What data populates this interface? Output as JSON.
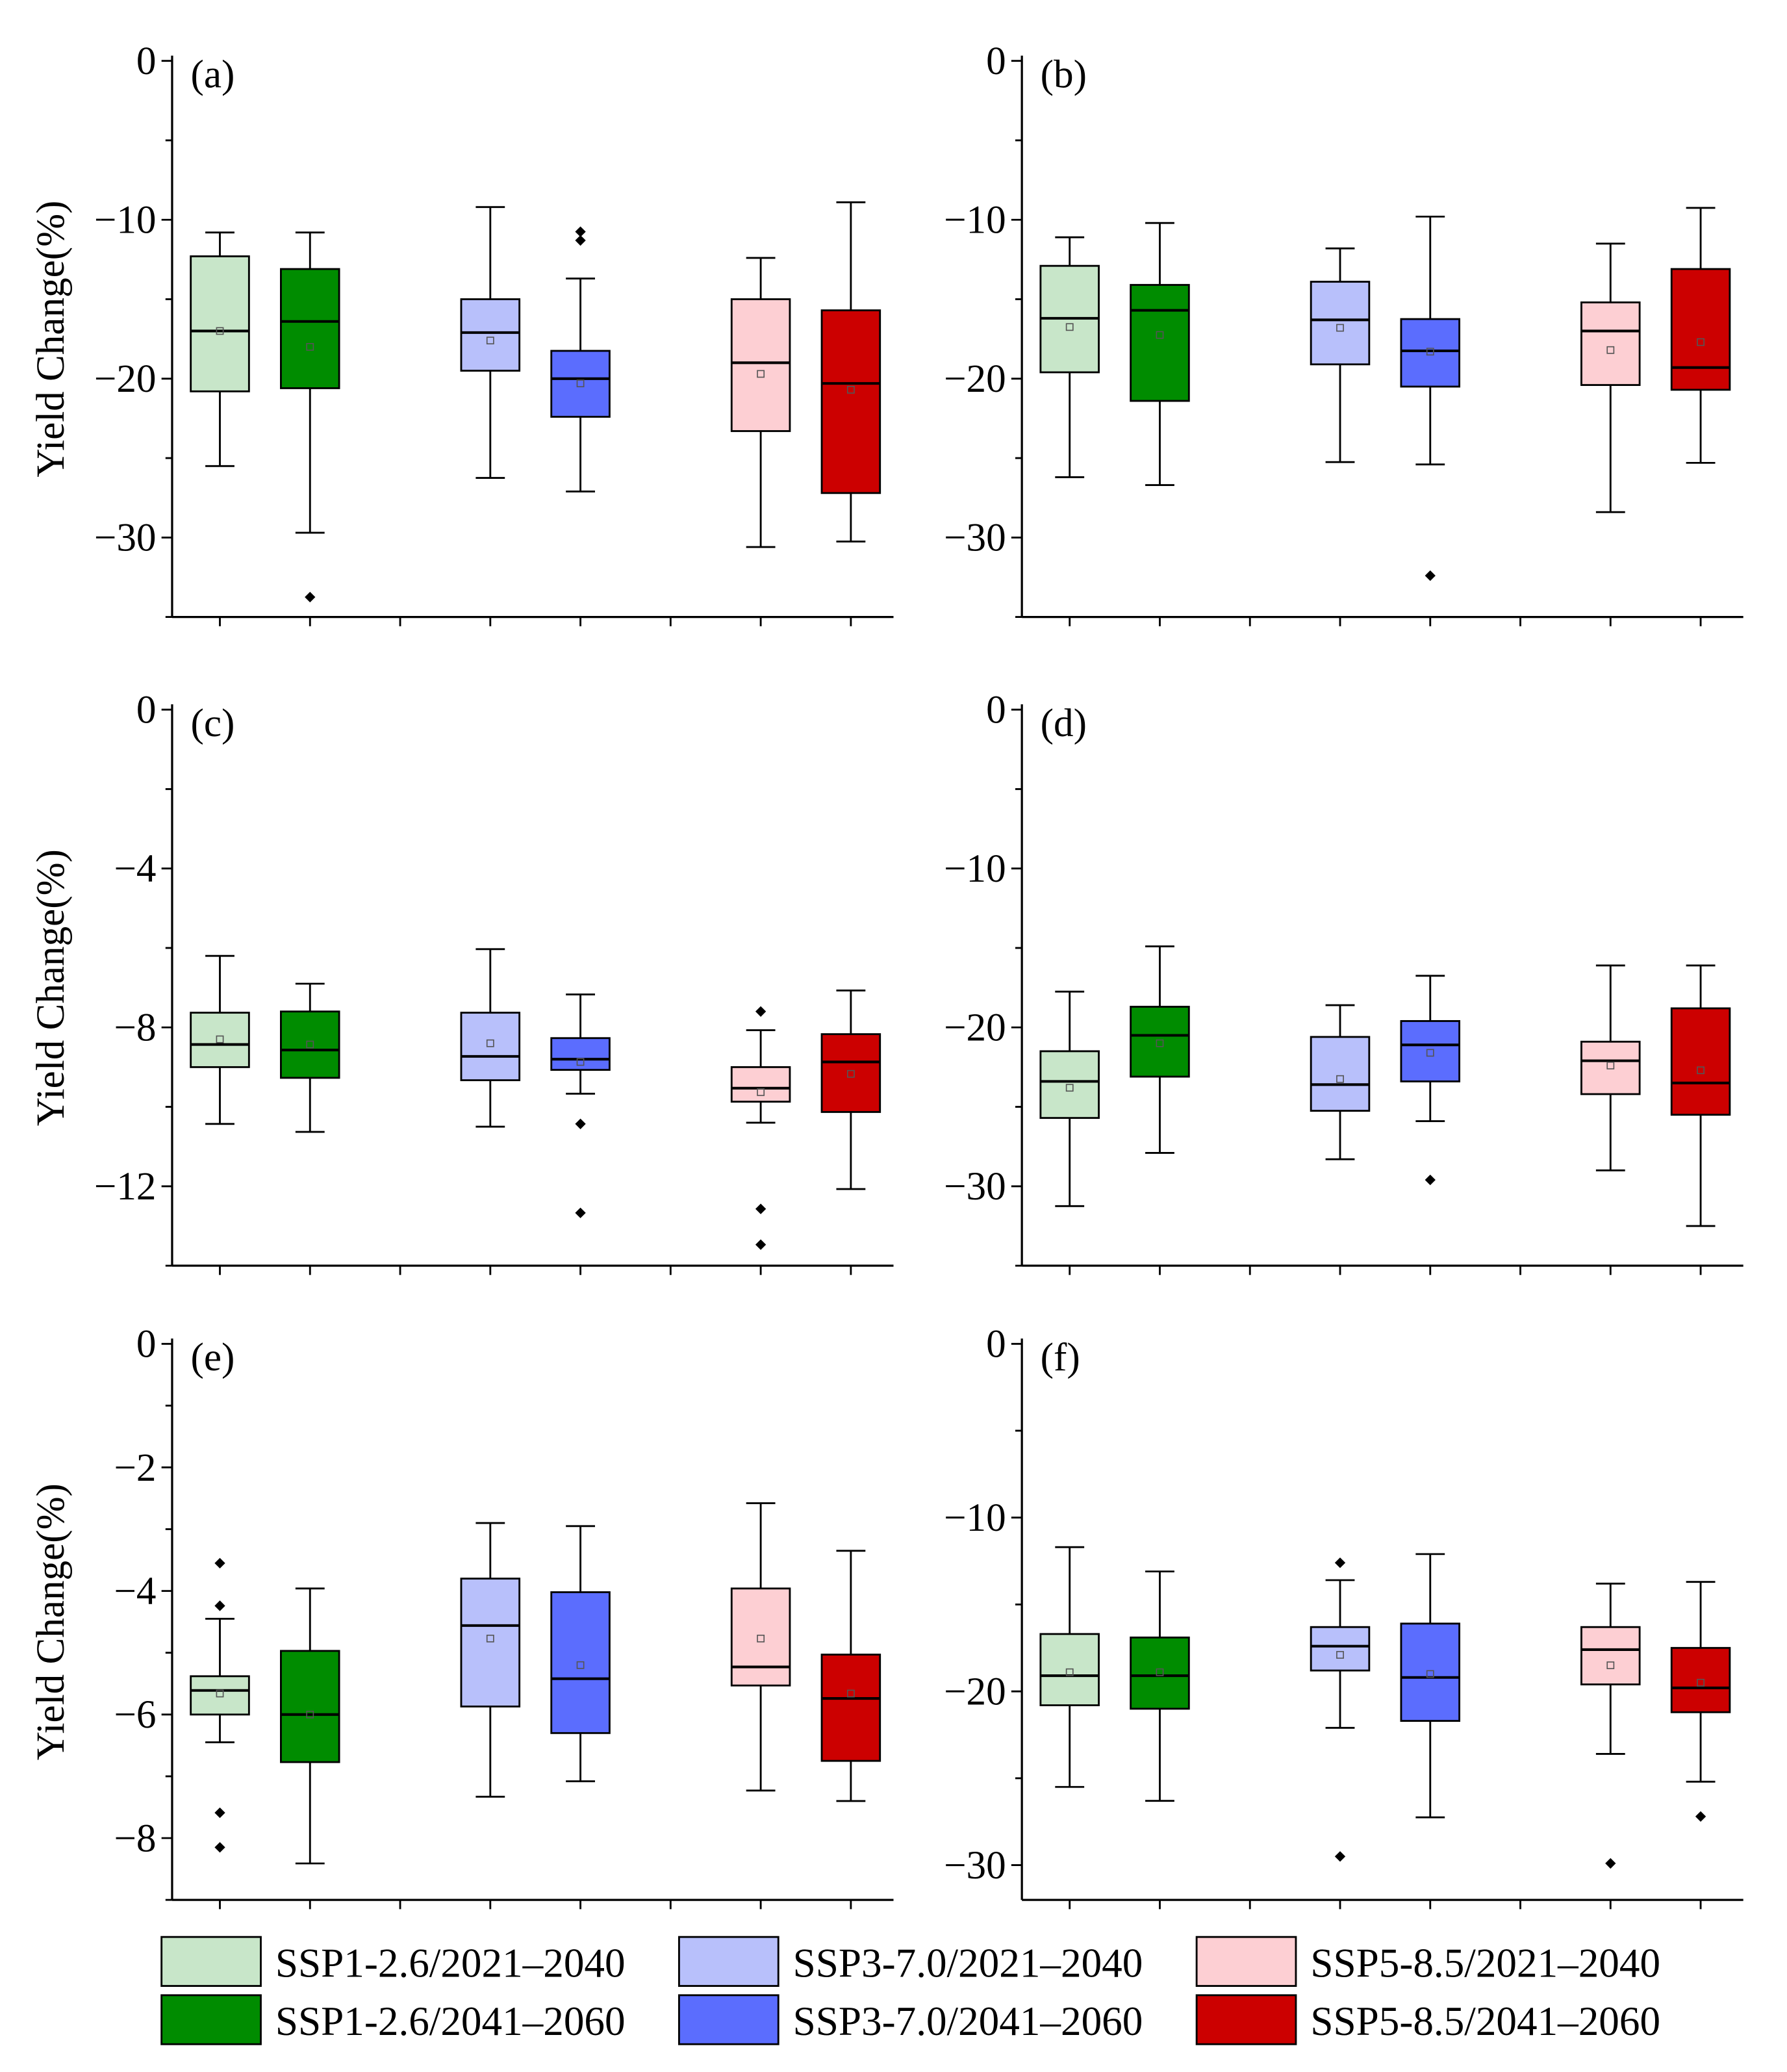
{
  "chart_data": {
    "type": "box",
    "ylabel": "Yield Change(%)",
    "legend": {
      "placement": "bottom",
      "entries": [
        {
          "label": "SSP1-2.6/2021–2040",
          "color": "#c8e6c9"
        },
        {
          "label": "SSP1-2.6/2041–2060",
          "color": "#008c00"
        },
        {
          "label": "SSP3-7.0/2021–2040",
          "color": "#b8c0fb"
        },
        {
          "label": "SSP3-7.0/2041–2060",
          "color": "#5b6dfe"
        },
        {
          "label": "SSP5-8.5/2021–2040",
          "color": "#fdcfd3"
        },
        {
          "label": "SSP5-8.5/2041–2060",
          "color": "#cc0000"
        }
      ]
    },
    "positions": [
      1,
      2,
      4,
      5,
      7,
      8
    ],
    "panels": [
      {
        "label": "(a)",
        "ylim": [
          -35,
          0
        ],
        "major": 10,
        "minor": 5,
        "ticks": [
          "0",
          "−10",
          "−20",
          "−30"
        ],
        "boxes": [
          {
            "whislo": -25.5,
            "q1": -20.8,
            "med": -17.0,
            "q3": -12.3,
            "whishi": -10.8,
            "mean": -17.0,
            "fliers": []
          },
          {
            "whislo": -29.7,
            "q1": -20.6,
            "med": -16.4,
            "q3": -13.1,
            "whishi": -10.8,
            "mean": -18.0,
            "fliers": [
              -33.75
            ]
          },
          {
            "whislo": -26.25,
            "q1": -19.5,
            "med": -17.1,
            "q3": -15.0,
            "whishi": -9.2,
            "mean": -17.6,
            "fliers": []
          },
          {
            "whislo": -27.1,
            "q1": -22.4,
            "med": -20.0,
            "q3": -18.25,
            "whishi": -13.7,
            "mean": -20.3,
            "fliers": [
              -10.75,
              -11.3
            ]
          },
          {
            "whislo": -30.6,
            "q1": -23.3,
            "med": -19.0,
            "q3": -15.0,
            "whishi": -12.4,
            "mean": -19.7,
            "fliers": []
          },
          {
            "whislo": -30.25,
            "q1": -27.2,
            "med": -20.3,
            "q3": -15.7,
            "whishi": -8.9,
            "mean": -20.7,
            "fliers": []
          }
        ]
      },
      {
        "label": "(b)",
        "ylim": [
          -35,
          0
        ],
        "major": 10,
        "minor": 5,
        "ticks": [
          "0",
          "−10",
          "−20",
          "−30"
        ],
        "boxes": [
          {
            "whislo": -26.2,
            "q1": -19.6,
            "med": -16.2,
            "q3": -12.9,
            "whishi": -11.1,
            "mean": -16.75,
            "fliers": []
          },
          {
            "whislo": -26.7,
            "q1": -21.4,
            "med": -15.7,
            "q3": -14.1,
            "whishi": -10.2,
            "mean": -17.25,
            "fliers": []
          },
          {
            "whislo": -25.25,
            "q1": -19.1,
            "med": -16.3,
            "q3": -13.9,
            "whishi": -11.8,
            "mean": -16.8,
            "fliers": []
          },
          {
            "whislo": -25.4,
            "q1": -20.5,
            "med": -18.25,
            "q3": -16.25,
            "whishi": -9.8,
            "mean": -18.3,
            "fliers": [
              -32.4
            ]
          },
          {
            "whislo": -28.4,
            "q1": -20.4,
            "med": -17.0,
            "q3": -15.2,
            "whishi": -11.5,
            "mean": -18.2,
            "fliers": []
          },
          {
            "whislo": -25.3,
            "q1": -20.7,
            "med": -19.3,
            "q3": -13.1,
            "whishi": -9.25,
            "mean": -17.7,
            "fliers": []
          }
        ]
      },
      {
        "label": "(c)",
        "ylim": [
          -14,
          0
        ],
        "major": 4,
        "minor": 2,
        "ticks": [
          "0",
          "−4",
          "−8",
          "−12"
        ],
        "boxes": [
          {
            "whislo": -10.43,
            "q1": -9.0,
            "med": -8.43,
            "q3": -7.63,
            "whishi": -6.2,
            "mean": -8.3,
            "fliers": []
          },
          {
            "whislo": -10.63,
            "q1": -9.27,
            "med": -8.57,
            "q3": -7.6,
            "whishi": -6.9,
            "mean": -8.43,
            "fliers": []
          },
          {
            "whislo": -10.5,
            "q1": -9.33,
            "med": -8.73,
            "q3": -7.63,
            "whishi": -6.03,
            "mean": -8.4,
            "fliers": []
          },
          {
            "whislo": -9.67,
            "q1": -9.07,
            "med": -8.8,
            "q3": -8.27,
            "whishi": -7.17,
            "mean": -8.87,
            "fliers": [
              -10.43,
              -12.67
            ]
          },
          {
            "whislo": -10.4,
            "q1": -9.87,
            "med": -9.53,
            "q3": -9.0,
            "whishi": -8.07,
            "mean": -9.63,
            "fliers": [
              -7.6,
              -12.57,
              -13.47
            ]
          },
          {
            "whislo": -12.07,
            "q1": -10.13,
            "med": -8.87,
            "q3": -8.17,
            "whishi": -7.07,
            "mean": -9.17,
            "fliers": []
          }
        ]
      },
      {
        "label": "(d)",
        "ylim": [
          -35,
          0
        ],
        "major": 10,
        "minor": 5,
        "ticks": [
          "0",
          "−10",
          "−20",
          "−30"
        ],
        "boxes": [
          {
            "whislo": -31.25,
            "q1": -25.7,
            "med": -23.4,
            "q3": -21.5,
            "whishi": -17.75,
            "mean": -23.8,
            "fliers": []
          },
          {
            "whislo": -27.9,
            "q1": -23.1,
            "med": -20.5,
            "q3": -18.7,
            "whishi": -14.9,
            "mean": -21.0,
            "fliers": []
          },
          {
            "whislo": -28.3,
            "q1": -25.25,
            "med": -23.6,
            "q3": -20.6,
            "whishi": -18.6,
            "mean": -23.25,
            "fliers": []
          },
          {
            "whislo": -25.9,
            "q1": -23.4,
            "med": -21.1,
            "q3": -19.6,
            "whishi": -16.75,
            "mean": -21.6,
            "fliers": [
              -29.6
            ]
          },
          {
            "whislo": -29.0,
            "q1": -24.2,
            "med": -22.1,
            "q3": -20.9,
            "whishi": -16.1,
            "mean": -22.4,
            "fliers": []
          },
          {
            "whislo": -32.5,
            "q1": -25.5,
            "med": -23.5,
            "q3": -18.8,
            "whishi": -16.1,
            "mean": -22.7,
            "fliers": []
          }
        ]
      },
      {
        "label": "(e)",
        "ylim": [
          -9,
          0
        ],
        "major": 2,
        "minor": 1,
        "ticks": [
          "0",
          "−2",
          "−4",
          "−6",
          "−8"
        ],
        "boxes": [
          {
            "whislo": -6.45,
            "q1": -6.0,
            "med": -5.61,
            "q3": -5.38,
            "whishi": -4.45,
            "mean": -5.66,
            "fliers": [
              -3.55,
              -4.24,
              -7.59,
              -8.15
            ]
          },
          {
            "whislo": -8.41,
            "q1": -6.77,
            "med": -6.0,
            "q3": -4.97,
            "whishi": -3.96,
            "mean": -6.0,
            "fliers": []
          },
          {
            "whislo": -7.33,
            "q1": -5.87,
            "med": -4.56,
            "q3": -3.8,
            "whishi": -2.9,
            "mean": -4.77,
            "fliers": []
          },
          {
            "whislo": -7.08,
            "q1": -6.3,
            "med": -5.42,
            "q3": -4.02,
            "whishi": -2.95,
            "mean": -5.2,
            "fliers": []
          },
          {
            "whislo": -7.23,
            "q1": -5.53,
            "med": -5.23,
            "q3": -3.96,
            "whishi": -2.58,
            "mean": -4.77,
            "fliers": []
          },
          {
            "whislo": -7.4,
            "q1": -6.75,
            "med": -5.74,
            "q3": -5.03,
            "whishi": -3.35,
            "mean": -5.66,
            "fliers": []
          }
        ]
      },
      {
        "label": "(f)",
        "ylim": [
          -32,
          0
        ],
        "major": 10,
        "minor": 5,
        "ticks": [
          "0",
          "−10",
          "−20",
          "−30"
        ],
        "boxes": [
          {
            "whislo": -25.5,
            "q1": -20.8,
            "med": -19.1,
            "q3": -16.7,
            "whishi": -11.7,
            "mean": -18.9,
            "fliers": []
          },
          {
            "whislo": -26.3,
            "q1": -21.0,
            "med": -19.1,
            "q3": -16.9,
            "whishi": -13.1,
            "mean": -18.9,
            "fliers": []
          },
          {
            "whislo": -22.1,
            "q1": -18.8,
            "med": -17.4,
            "q3": -16.3,
            "whishi": -13.6,
            "mean": -17.9,
            "fliers": [
              -12.6,
              -29.5
            ]
          },
          {
            "whislo": -27.25,
            "q1": -21.7,
            "med": -19.2,
            "q3": -16.1,
            "whishi": -12.1,
            "mean": -19.0,
            "fliers": []
          },
          {
            "whislo": -23.6,
            "q1": -19.6,
            "med": -17.6,
            "q3": -16.3,
            "whishi": -13.8,
            "mean": -18.5,
            "fliers": [
              -29.9
            ]
          },
          {
            "whislo": -25.2,
            "q1": -21.2,
            "med": -19.8,
            "q3": -17.5,
            "whishi": -13.7,
            "mean": -19.5,
            "fliers": [
              -27.2
            ]
          }
        ]
      }
    ]
  }
}
